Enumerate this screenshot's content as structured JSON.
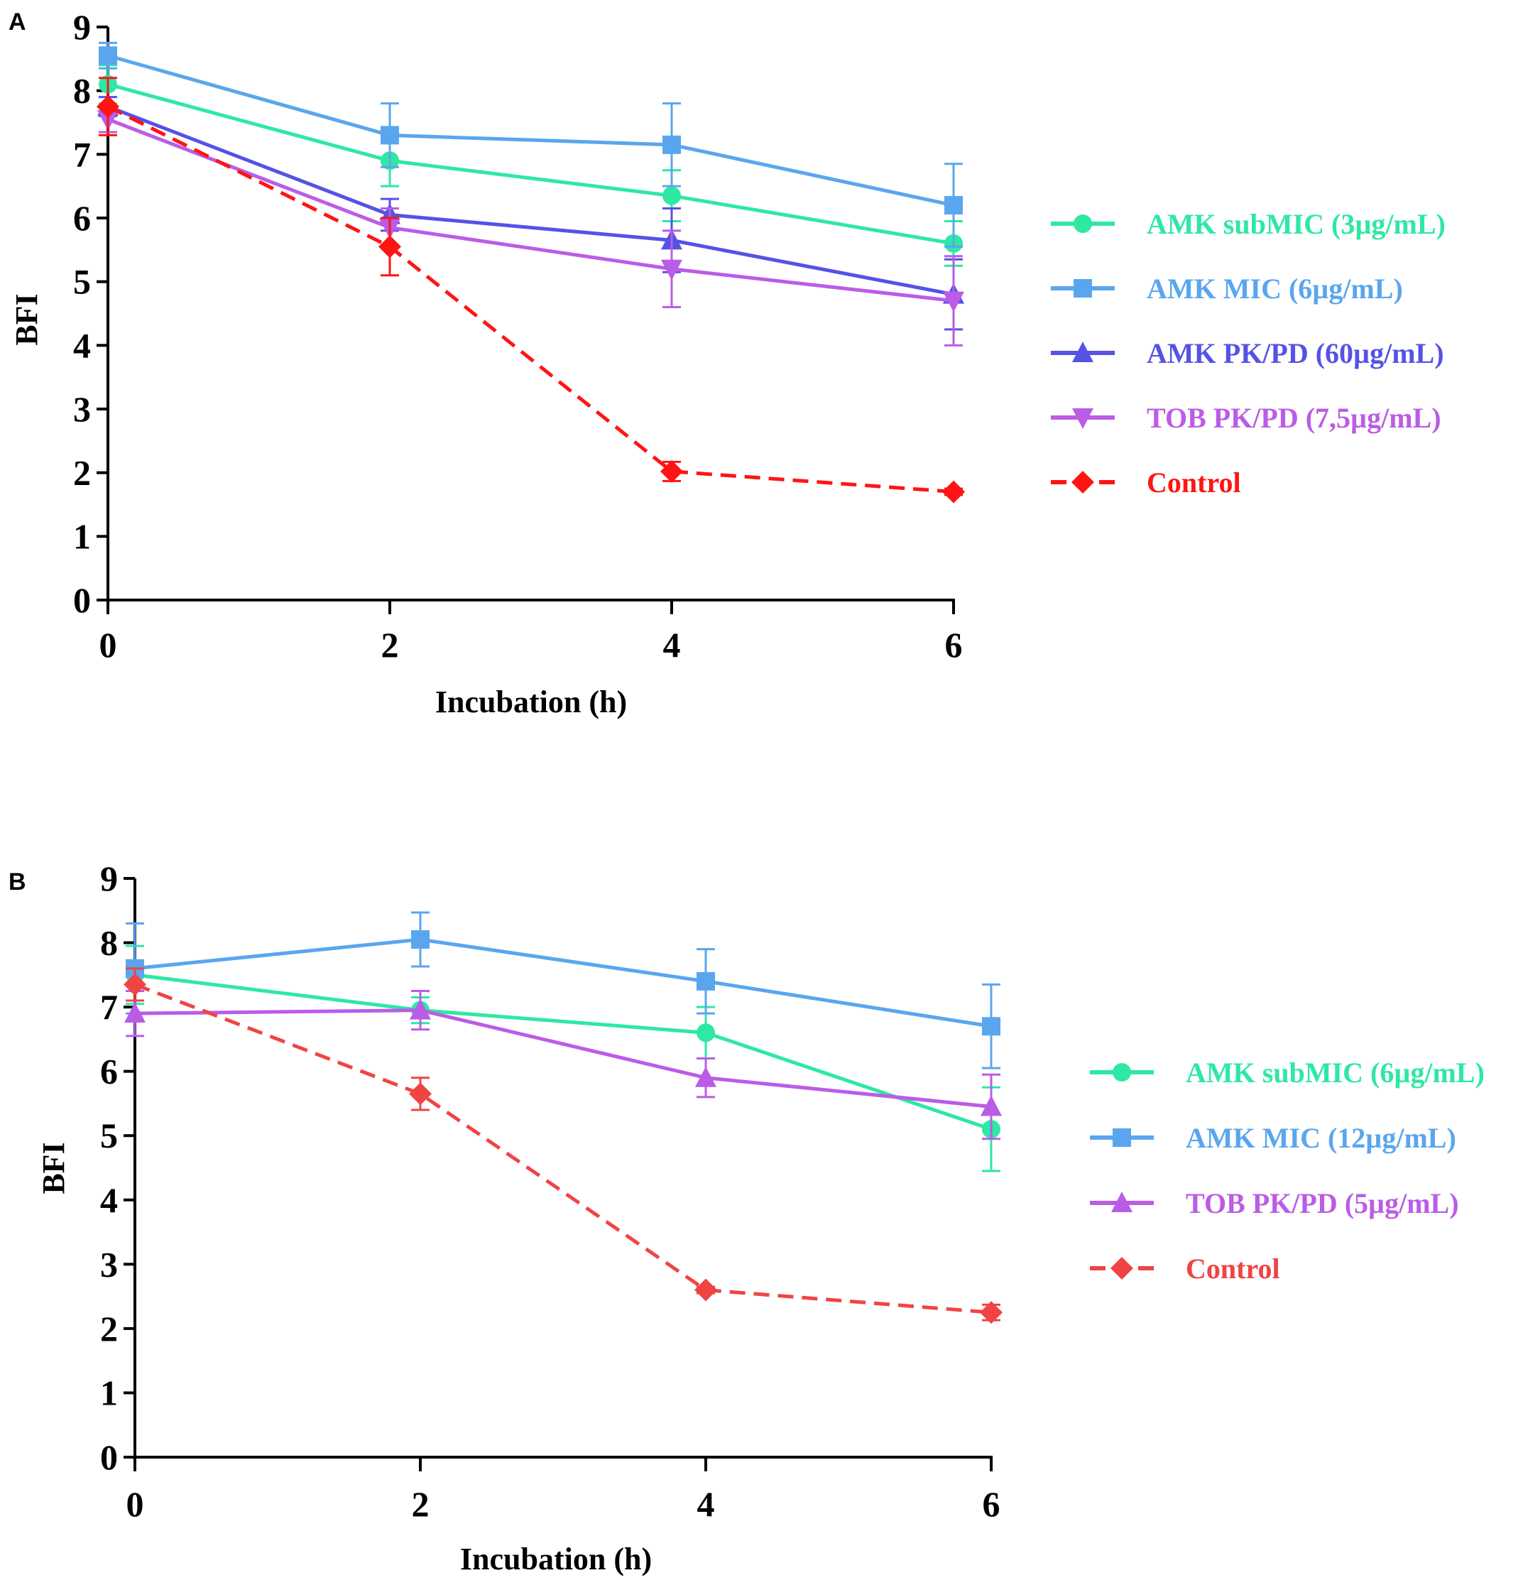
{
  "chart_data": [
    {
      "type": "line",
      "panel": "A",
      "xlabel": "Incubation (h)",
      "ylabel": "BFI",
      "x": [
        0,
        2,
        4,
        6
      ],
      "xticks": [
        "0",
        "2",
        "4",
        "6"
      ],
      "ylim": [
        0,
        9
      ],
      "yticks": [
        "0",
        "1",
        "2",
        "3",
        "4",
        "5",
        "6",
        "7",
        "8",
        "9"
      ],
      "legend_position": "right",
      "series": [
        {
          "name": "AMK subMIC (3µg/mL)",
          "values": [
            8.1,
            6.9,
            6.35,
            5.6
          ],
          "errors": [
            0.3,
            0.4,
            0.4,
            0.35
          ],
          "color": "#2ee8a3",
          "marker": "circle",
          "dashed": false
        },
        {
          "name": "AMK MIC (6µg/mL)",
          "values": [
            8.55,
            7.3,
            7.15,
            6.2
          ],
          "errors": [
            0.2,
            0.5,
            0.65,
            0.65
          ],
          "color": "#5aa6ee",
          "marker": "square",
          "dashed": false
        },
        {
          "name": "AMK PK/PD (60µg/mL)",
          "values": [
            7.75,
            6.05,
            5.65,
            4.8
          ],
          "errors": [
            0.15,
            0.25,
            0.5,
            0.55
          ],
          "color": "#5552e6",
          "marker": "triangle-up",
          "dashed": false
        },
        {
          "name": "TOB PK/PD (7,5µg/mL)",
          "values": [
            7.55,
            5.85,
            5.2,
            4.7
          ],
          "errors": [
            0.2,
            0.3,
            0.6,
            0.7
          ],
          "color": "#bb5ce6",
          "marker": "triangle-down",
          "dashed": false
        },
        {
          "name": "Control",
          "values": [
            7.75,
            5.55,
            2.02,
            1.7
          ],
          "errors": [
            0.45,
            0.45,
            0.15,
            0.05
          ],
          "color": "#ff1414",
          "marker": "diamond",
          "dashed": true
        }
      ]
    },
    {
      "type": "line",
      "panel": "B",
      "xlabel": "Incubation (h)",
      "ylabel": "BFI",
      "x": [
        0,
        2,
        4,
        6
      ],
      "xticks": [
        "0",
        "2",
        "4",
        "6"
      ],
      "ylim": [
        0,
        9
      ],
      "yticks": [
        "0",
        "1",
        "2",
        "3",
        "4",
        "5",
        "6",
        "7",
        "8",
        "9"
      ],
      "legend_position": "right",
      "series": [
        {
          "name": "AMK subMIC (6µg/mL)",
          "values": [
            7.5,
            6.95,
            6.6,
            5.1
          ],
          "errors": [
            0.45,
            0.2,
            0.4,
            0.65
          ],
          "color": "#2ee8a3",
          "marker": "circle",
          "dashed": false
        },
        {
          "name": "AMK MIC (12µg/mL)",
          "values": [
            7.6,
            8.05,
            7.4,
            6.7
          ],
          "errors": [
            0.7,
            0.42,
            0.5,
            0.65
          ],
          "color": "#5aa6ee",
          "marker": "square",
          "dashed": false
        },
        {
          "name": "TOB PK/PD (5µg/mL)",
          "values": [
            6.9,
            6.95,
            5.9,
            5.45
          ],
          "errors": [
            0.35,
            0.3,
            0.3,
            0.5
          ],
          "color": "#bb5ce6",
          "marker": "triangle-up",
          "dashed": false
        },
        {
          "name": "Control",
          "values": [
            7.35,
            5.65,
            2.6,
            2.25
          ],
          "errors": [
            0.25,
            0.25,
            0.05,
            0.12
          ],
          "color": "#f04444",
          "marker": "diamond",
          "dashed": true
        }
      ]
    }
  ]
}
